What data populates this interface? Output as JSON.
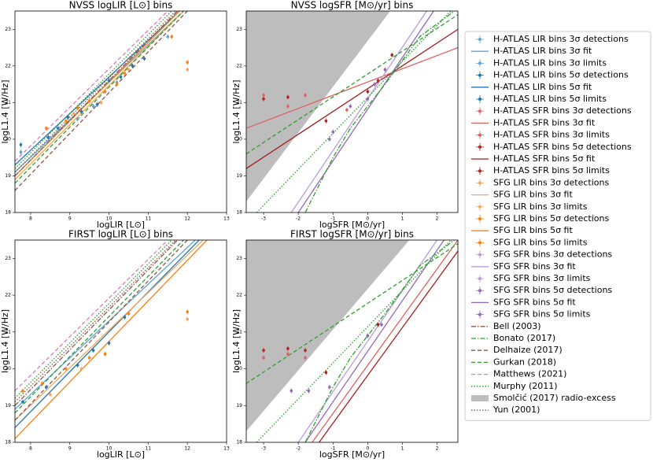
{
  "chart_data": [
    {
      "type": "line",
      "title": "NVSS logLIR [L⊙] bins",
      "xlabel": "logLIR [L⊙]",
      "ylabel": "logL1.4 [W/Hz]",
      "xlim": [
        7.6,
        13
      ],
      "ylim": [
        18,
        23.5
      ],
      "xticks": [
        8,
        9,
        10,
        11,
        12,
        13
      ],
      "yticks": [
        18,
        19,
        20,
        21,
        22,
        23
      ],
      "series": [
        {
          "style": "line",
          "color": "#5da5da",
          "x": [
            7.6,
            11.9
          ],
          "y": [
            19.1,
            23.5
          ]
        },
        {
          "style": "line",
          "color": "#1f77b4",
          "x": [
            7.6,
            11.8
          ],
          "y": [
            19.3,
            23.5
          ]
        },
        {
          "style": "line",
          "color": "#f7a55a",
          "x": [
            7.6,
            11.9
          ],
          "y": [
            18.9,
            23.5
          ]
        },
        {
          "style": "line",
          "color": "#ff7f0e",
          "x": [
            7.6,
            11.8
          ],
          "y": [
            19.0,
            23.5
          ]
        },
        {
          "style": "dashdot",
          "color": "#8c564b",
          "x": [
            7.6,
            11.75
          ],
          "y": [
            19.0,
            23.5
          ]
        },
        {
          "style": "dashed",
          "color": "#8c564b",
          "x": [
            7.6,
            12.0
          ],
          "y": [
            18.6,
            23.5
          ]
        },
        {
          "style": "dashed",
          "color": "#2ca02c",
          "x": [
            7.6,
            11.9
          ],
          "y": [
            18.8,
            23.5
          ]
        },
        {
          "style": "dashed",
          "color": "#e377c2",
          "x": [
            7.6,
            11.5
          ],
          "y": [
            19.4,
            23.5
          ]
        },
        {
          "style": "dotted",
          "color": "#2ca02c",
          "x": [
            7.6,
            11.6
          ],
          "y": [
            19.2,
            23.5
          ]
        },
        {
          "style": "dotted",
          "color": "#8c564b",
          "x": [
            7.6,
            11.7
          ],
          "y": [
            19.1,
            23.5
          ]
        },
        {
          "style": "point",
          "color": "#1f77b4",
          "x": [
            7.75,
            8.45,
            8.7,
            8.95,
            9.3,
            9.7,
            10.0,
            10.3,
            10.6,
            10.9
          ],
          "y": [
            19.85,
            20.05,
            20.3,
            20.6,
            20.75,
            20.95,
            21.6,
            21.7,
            22.0,
            22.2
          ]
        },
        {
          "style": "point",
          "color": "#5da5da",
          "x": [
            7.75,
            9.2,
            9.6,
            10.2,
            11.5
          ],
          "y": [
            19.65,
            20.55,
            20.9,
            21.55,
            22.8
          ]
        },
        {
          "style": "point",
          "color": "#ff7f0e",
          "x": [
            8.4,
            8.9,
            9.2,
            9.5,
            9.9,
            10.2,
            10.4,
            12.0,
            11.6
          ],
          "y": [
            20.3,
            20.5,
            20.85,
            21.05,
            21.3,
            21.5,
            21.8,
            22.1,
            22.8
          ]
        },
        {
          "style": "point",
          "color": "#f7a55a",
          "x": [
            9.1,
            9.8,
            10.5,
            12.0
          ],
          "y": [
            20.7,
            21.0,
            21.9,
            21.9
          ]
        }
      ]
    },
    {
      "type": "line",
      "title": "NVSS logSFR [M⊙/yr] bins",
      "xlabel": "logSFR [M⊙/yr]",
      "ylabel": "logL1.4 [W/Hz]",
      "xlim": [
        -3.5,
        2.6
      ],
      "ylim": [
        18,
        23.5
      ],
      "xticks": [
        -3,
        -2,
        -1,
        0,
        1,
        2
      ],
      "yticks": [
        18,
        19,
        20,
        21,
        22,
        23
      ],
      "series": [
        {
          "style": "fill",
          "color": "#bdbdbd",
          "x": [
            -3.5,
            0.65
          ],
          "y": [
            18.3,
            23.5
          ]
        },
        {
          "style": "line",
          "color": "#e06060",
          "x": [
            -3.5,
            2.6
          ],
          "y": [
            20.3,
            22.5
          ]
        },
        {
          "style": "line",
          "color": "#a31d1d",
          "x": [
            -3.5,
            2.6
          ],
          "y": [
            19.2,
            23.0
          ]
        },
        {
          "style": "line",
          "color": "#b89ddb",
          "x": [
            -2.2,
            1.7
          ],
          "y": [
            18,
            23.5
          ]
        },
        {
          "style": "line",
          "color": "#9467bd",
          "x": [
            -2.0,
            1.9
          ],
          "y": [
            18,
            23.5
          ]
        },
        {
          "style": "dashdot",
          "color": "#2ca02c",
          "x": [
            -1.8,
            -1.0,
            -0.5,
            0.0,
            0.5,
            1.5,
            2.5
          ],
          "y": [
            18,
            19.5,
            20.3,
            20.9,
            21.5,
            22.8,
            23.5
          ]
        },
        {
          "style": "dashed",
          "color": "#2ca02c",
          "x": [
            -3.5,
            2.6
          ],
          "y": [
            19.6,
            23.4
          ]
        },
        {
          "style": "dotted",
          "color": "#2ca02c",
          "x": [
            -3.2,
            2.4
          ],
          "y": [
            18,
            23.5
          ]
        },
        {
          "style": "point",
          "color": "#e06060",
          "x": [
            -3.0,
            -2.3,
            -1.8,
            -0.6
          ],
          "y": [
            21.2,
            20.9,
            21.2,
            20.8
          ]
        },
        {
          "style": "point",
          "color": "#b22222",
          "x": [
            -3.0,
            -2.3,
            -1.2,
            0.0,
            0.3,
            0.7
          ],
          "y": [
            21.1,
            21.15,
            20.5,
            21.3,
            21.6,
            22.3
          ]
        },
        {
          "style": "point",
          "color": "#9467bd",
          "x": [
            -1.1,
            -1.0,
            -0.5,
            0.0,
            0.2,
            0.5
          ],
          "y": [
            20.0,
            20.2,
            20.9,
            21.1,
            21.5,
            21.9
          ]
        }
      ]
    },
    {
      "type": "line",
      "title": "FIRST logLIR [L⊙] bins",
      "xlabel": "logLIR [L⊙]",
      "ylabel": "logL1.4 [W/Hz]",
      "xlim": [
        7.6,
        13
      ],
      "ylim": [
        18,
        23.5
      ],
      "xticks": [
        8,
        9,
        10,
        11,
        12,
        13
      ],
      "yticks": [
        18,
        19,
        20,
        21,
        22,
        23
      ],
      "series": [
        {
          "style": "line",
          "color": "#5da5da",
          "x": [
            7.6,
            12.2
          ],
          "y": [
            18.9,
            23.5
          ]
        },
        {
          "style": "line",
          "color": "#1f77b4",
          "x": [
            7.6,
            12.3
          ],
          "y": [
            18.4,
            23.5
          ]
        },
        {
          "style": "line",
          "color": "#f7a55a",
          "x": [
            7.6,
            12.4
          ],
          "y": [
            18.6,
            23.5
          ]
        },
        {
          "style": "line",
          "color": "#ff7f0e",
          "x": [
            7.6,
            12.5
          ],
          "y": [
            18.1,
            23.5
          ]
        },
        {
          "style": "dashdot",
          "color": "#8c564b",
          "x": [
            7.6,
            11.75
          ],
          "y": [
            19.0,
            23.5
          ]
        },
        {
          "style": "dashed",
          "color": "#8c564b",
          "x": [
            7.6,
            12.0
          ],
          "y": [
            18.6,
            23.5
          ]
        },
        {
          "style": "dashed",
          "color": "#2ca02c",
          "x": [
            7.6,
            11.9
          ],
          "y": [
            18.8,
            23.5
          ]
        },
        {
          "style": "dashed",
          "color": "#e377c2",
          "x": [
            7.6,
            11.5
          ],
          "y": [
            19.4,
            23.5
          ]
        },
        {
          "style": "dotted",
          "color": "#2ca02c",
          "x": [
            7.6,
            11.6
          ],
          "y": [
            19.2,
            23.5
          ]
        },
        {
          "style": "dotted",
          "color": "#8c564b",
          "x": [
            7.6,
            11.7
          ],
          "y": [
            19.1,
            23.5
          ]
        },
        {
          "style": "point",
          "color": "#1f77b4",
          "x": [
            7.8,
            8.4,
            9.2,
            9.6,
            10.0,
            10.4
          ],
          "y": [
            19.1,
            19.5,
            20.1,
            20.5,
            20.7,
            21.4
          ]
        },
        {
          "style": "point",
          "color": "#ff7f0e",
          "x": [
            7.8,
            8.3,
            8.9,
            9.5,
            9.9,
            10.5,
            12.0
          ],
          "y": [
            19.4,
            19.6,
            20.0,
            20.3,
            20.4,
            21.5,
            21.55
          ]
        },
        {
          "style": "point",
          "color": "#f7a55a",
          "x": [
            8.5,
            9.3,
            12.0
          ],
          "y": [
            19.3,
            20.0,
            21.35
          ]
        }
      ]
    },
    {
      "type": "line",
      "title": "FIRST logSFR [M⊙/yr] bins",
      "xlabel": "logSFR [M⊙/yr]",
      "ylabel": "logL1.4 [W/Hz]",
      "xlim": [
        -3.5,
        2.6
      ],
      "ylim": [
        18,
        23.5
      ],
      "xticks": [
        -3,
        -2,
        -1,
        0,
        1,
        2
      ],
      "yticks": [
        18,
        19,
        20,
        21,
        22,
        23
      ],
      "series": [
        {
          "style": "fill",
          "color": "#bdbdbd",
          "x": [
            -3.5,
            1.2
          ],
          "y": [
            18.3,
            23.5
          ]
        },
        {
          "style": "line",
          "color": "#e06060",
          "x": [
            -1.6,
            2.6
          ],
          "y": [
            18,
            23.5
          ]
        },
        {
          "style": "line",
          "color": "#a31d1d",
          "x": [
            -1.4,
            2.6
          ],
          "y": [
            18,
            23.2
          ]
        },
        {
          "style": "line",
          "color": "#b89ddb",
          "x": [
            -2.0,
            2.0
          ],
          "y": [
            18,
            23.5
          ]
        },
        {
          "style": "line",
          "color": "#9467bd",
          "x": [
            -1.8,
            2.2
          ],
          "y": [
            18,
            23.5
          ]
        },
        {
          "style": "dashdot",
          "color": "#2ca02c",
          "x": [
            -1.8,
            -1.0,
            -0.5,
            0.0,
            0.5,
            1.5,
            2.5
          ],
          "y": [
            18,
            19.5,
            20.3,
            20.9,
            21.5,
            22.8,
            23.5
          ]
        },
        {
          "style": "dashed",
          "color": "#2ca02c",
          "x": [
            -3.5,
            2.6
          ],
          "y": [
            19.6,
            23.4
          ]
        },
        {
          "style": "dotted",
          "color": "#2ca02c",
          "x": [
            -3.2,
            2.4
          ],
          "y": [
            18,
            23.5
          ]
        },
        {
          "style": "point",
          "color": "#e06060",
          "x": [
            -3.0,
            -2.3,
            -1.8
          ],
          "y": [
            20.3,
            20.4,
            20.3
          ]
        },
        {
          "style": "point",
          "color": "#b22222",
          "x": [
            -3.0,
            -2.3,
            -1.8,
            -1.2,
            0.0,
            0.3
          ],
          "y": [
            20.5,
            20.55,
            20.5,
            19.9,
            20.9,
            21.2
          ]
        },
        {
          "style": "point",
          "color": "#9467bd",
          "x": [
            -2.2,
            -1.7,
            -1.1,
            0.0,
            0.4
          ],
          "y": [
            19.4,
            19.4,
            19.5,
            20.9,
            21.2
          ]
        }
      ]
    }
  ],
  "legend": [
    {
      "name": "H-ATLAS LIR bins 3σ detections",
      "style": "point",
      "color": "#5da5da"
    },
    {
      "name": "H-ATLAS LIR bins 3σ fit",
      "style": "line",
      "color": "#5da5da"
    },
    {
      "name": "H-ATLAS LIR bins 3σ limits",
      "style": "point",
      "color": "#5da5da"
    },
    {
      "name": "H-ATLAS LIR bins 5σ detections",
      "style": "point",
      "color": "#1f77b4"
    },
    {
      "name": "H-ATLAS LIR bins 5σ fit",
      "style": "line",
      "color": "#1f77b4"
    },
    {
      "name": "H-ATLAS LIR bins 5σ limits",
      "style": "point",
      "color": "#1f77b4"
    },
    {
      "name": "H-ATLAS SFR bins 3σ detections",
      "style": "point",
      "color": "#e06060"
    },
    {
      "name": "H-ATLAS SFR bins 3σ fit",
      "style": "line",
      "color": "#e06060"
    },
    {
      "name": "H-ATLAS SFR bins 3σ limits",
      "style": "point",
      "color": "#e06060"
    },
    {
      "name": "H-ATLAS SFR bins 5σ detections",
      "style": "point",
      "color": "#b22222"
    },
    {
      "name": "H-ATLAS SFR bins 5σ fit",
      "style": "line",
      "color": "#a31d1d"
    },
    {
      "name": "H-ATLAS SFR bins 5σ limits",
      "style": "point",
      "color": "#b22222"
    },
    {
      "name": "SFG LIR bins 3σ detections",
      "style": "point",
      "color": "#f7a55a"
    },
    {
      "name": "SFG LIR bins 3σ fit",
      "style": "line",
      "color": "#f7a55a"
    },
    {
      "name": "SFG LIR bins 3σ limits",
      "style": "point",
      "color": "#f7a55a"
    },
    {
      "name": "SFG LIR bins 5σ detections",
      "style": "point",
      "color": "#ff7f0e"
    },
    {
      "name": "SFG LIR bins 5σ fit",
      "style": "line",
      "color": "#ff7f0e"
    },
    {
      "name": "SFG LIR bins 5σ limits",
      "style": "point",
      "color": "#ff7f0e"
    },
    {
      "name": "SFG SFR bins 3σ detections",
      "style": "point",
      "color": "#b89ddb"
    },
    {
      "name": "SFG SFR bins 3σ fit",
      "style": "line",
      "color": "#b89ddb"
    },
    {
      "name": "SFG SFR bins 3σ limits",
      "style": "point",
      "color": "#b89ddb"
    },
    {
      "name": "SFG SFR bins 5σ detections",
      "style": "point",
      "color": "#9467bd"
    },
    {
      "name": "SFG SFR bins 5σ fit",
      "style": "line",
      "color": "#9467bd"
    },
    {
      "name": "SFG SFR bins 5σ limits",
      "style": "point",
      "color": "#9467bd"
    },
    {
      "name": "Bell (2003)",
      "style": "dashdot",
      "color": "#8c564b"
    },
    {
      "name": "Bonato (2017)",
      "style": "dashdot",
      "color": "#2ca02c"
    },
    {
      "name": "Delhaize (2017)",
      "style": "dashed",
      "color": "#8c564b"
    },
    {
      "name": "Gurkan (2018)",
      "style": "dashed",
      "color": "#2ca02c"
    },
    {
      "name": "Matthews (2021)",
      "style": "dashed",
      "color": "#e377c2"
    },
    {
      "name": "Murphy (2011)",
      "style": "dotted",
      "color": "#2ca02c"
    },
    {
      "name": "Smolčić (2017) radio-excess",
      "style": "fill",
      "color": "#bdbdbd"
    },
    {
      "name": "Yun (2001)",
      "style": "dotted",
      "color": "#8c564b"
    }
  ]
}
